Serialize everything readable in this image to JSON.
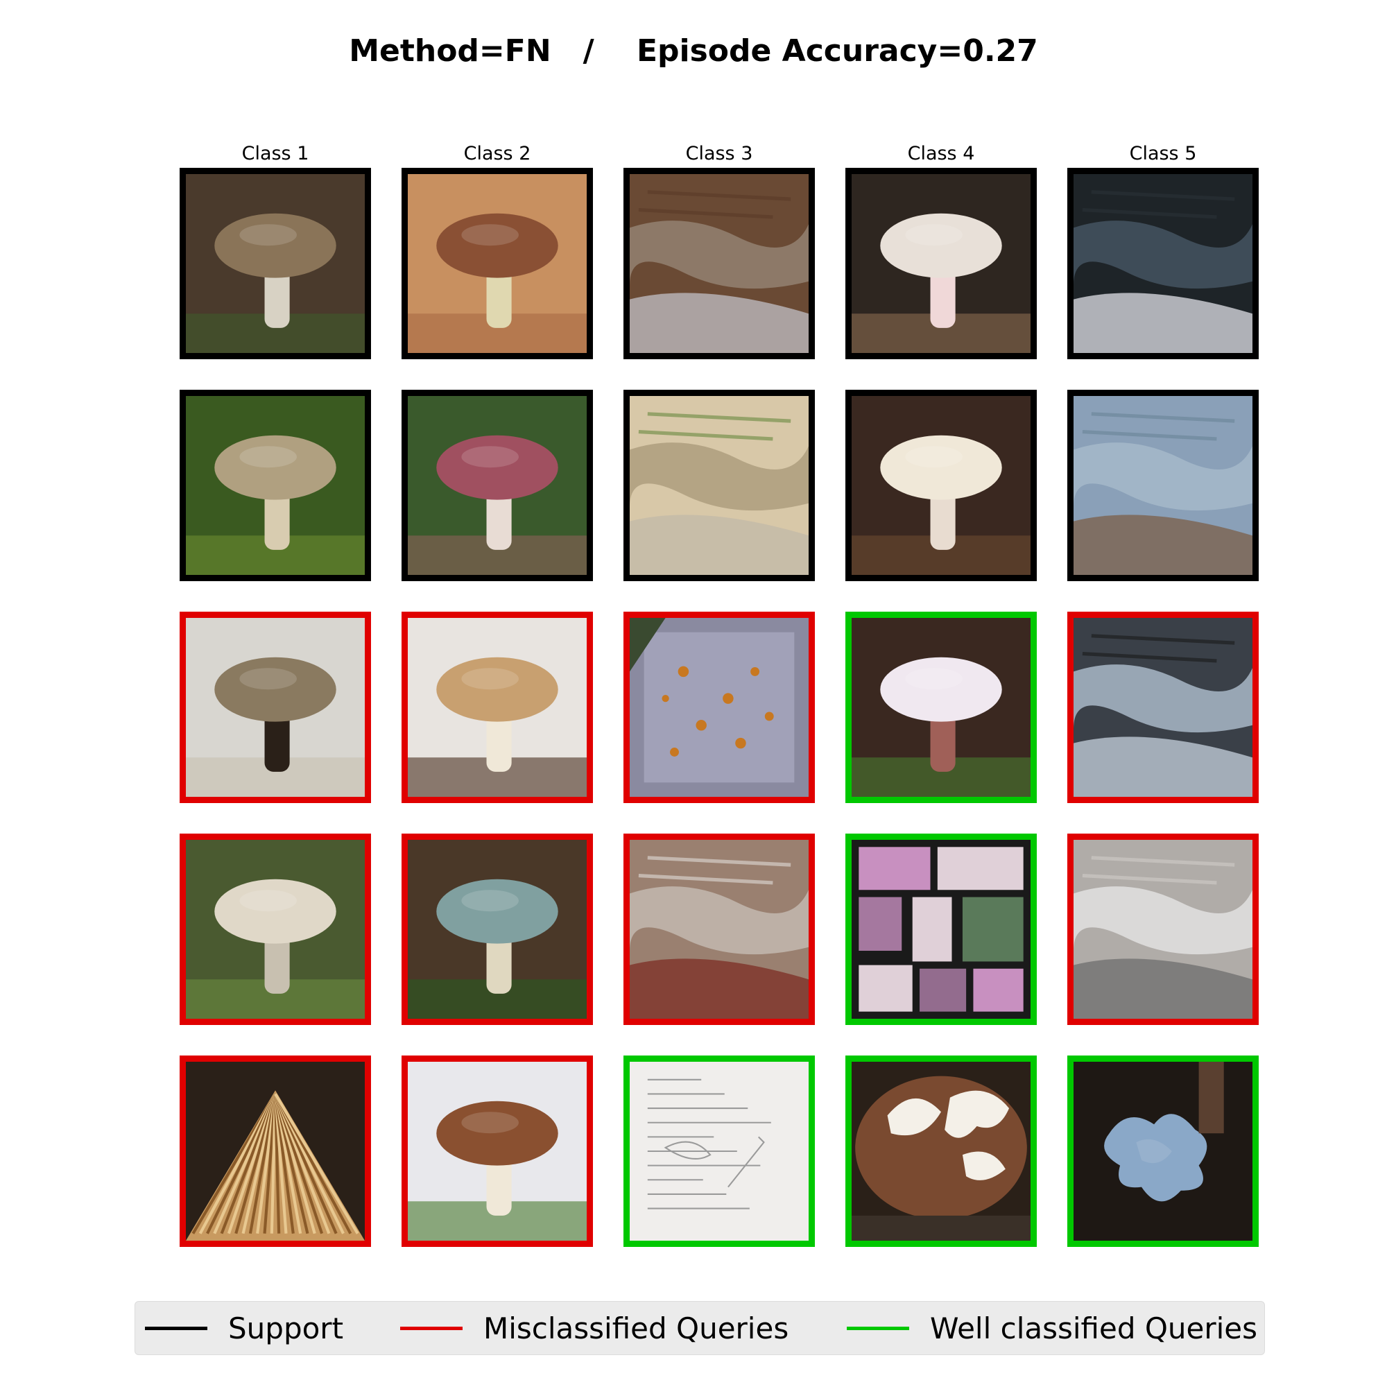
{
  "title": "Method=FN   /    Episode Accuracy=0.27",
  "column_labels": [
    "Class 1",
    "Class 2",
    "Class 3",
    "Class 4",
    "Class 5"
  ],
  "colors": {
    "support": "#000000",
    "misclassified": "#e00000",
    "well_classified": "#00c800",
    "legend_background": "#ebebeb"
  },
  "grid": {
    "rows": [
      {
        "row_type": "support",
        "cells": [
          {
            "status": "support",
            "subject": "brown-cap-mushroom-on-forest-floor"
          },
          {
            "status": "support",
            "subject": "brown-cap-underside-on-wood"
          },
          {
            "status": "support",
            "subject": "wood-bark-with-pale-fungus"
          },
          {
            "status": "support",
            "subject": "white-mushroom-in-leaf-litter"
          },
          {
            "status": "support",
            "subject": "dark-bark-with-blue-grey-fungus"
          }
        ]
      },
      {
        "row_type": "support",
        "cells": [
          {
            "status": "support",
            "subject": "tan-cap-mushroom-in-grass"
          },
          {
            "status": "support",
            "subject": "pink-red-mushrooms-in-grass"
          },
          {
            "status": "support",
            "subject": "bark-specimen-with-ruler"
          },
          {
            "status": "support",
            "subject": "white-mushroom-in-dark-leaves"
          },
          {
            "status": "support",
            "subject": "pale-blue-crust-fungus"
          }
        ]
      },
      {
        "row_type": "query",
        "cells": [
          {
            "status": "misclassified",
            "subject": "grey-brown-mushrooms-on-white"
          },
          {
            "status": "misclassified",
            "subject": "tan-mushroom-caps-on-white"
          },
          {
            "status": "misclassified",
            "subject": "grey-surface-with-orange-dots"
          },
          {
            "status": "well_classified",
            "subject": "white-stem-mushroom-in-leaves"
          },
          {
            "status": "misclassified",
            "subject": "blue-grey-crust-with-holes"
          }
        ]
      },
      {
        "row_type": "query",
        "cells": [
          {
            "status": "misclassified",
            "subject": "white-mushrooms-in-grass"
          },
          {
            "status": "misclassified",
            "subject": "mushrooms-in-leaf-litter"
          },
          {
            "status": "misclassified",
            "subject": "bark-with-red-moss"
          },
          {
            "status": "well_classified",
            "subject": "collage-of-pink-mushrooms"
          },
          {
            "status": "misclassified",
            "subject": "white-grey-crust-fungus"
          }
        ]
      },
      {
        "row_type": "query",
        "cells": [
          {
            "status": "misclassified",
            "subject": "mushroom-gills-close-up"
          },
          {
            "status": "misclassified",
            "subject": "brown-cap-mushroom-on-paper"
          },
          {
            "status": "well_classified",
            "subject": "handwritten-notes-page"
          },
          {
            "status": "well_classified",
            "subject": "brown-cap-with-white-patches"
          },
          {
            "status": "well_classified",
            "subject": "blue-fungus-on-dark-wood"
          }
        ]
      }
    ]
  },
  "legend": [
    {
      "label": "Support",
      "status": "support"
    },
    {
      "label": "Misclassified Queries",
      "status": "misclassified"
    },
    {
      "label": "Well classified Queries",
      "status": "well_classified"
    }
  ]
}
